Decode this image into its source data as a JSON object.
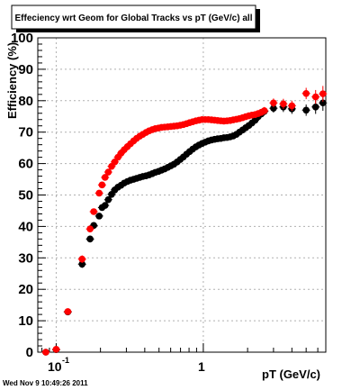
{
  "chart_data": {
    "type": "scatter",
    "title": "Effeciency wrt Geom for Global Tracks vs pT (GeV/c) all",
    "xlabel": "pT (GeV/c)",
    "ylabel": "Efficiency (%)",
    "x_scale": "log",
    "xlim": [
      0.075,
      6.8
    ],
    "ylim": [
      0,
      100
    ],
    "grid": true,
    "x_tick_labels": [
      {
        "base": "10",
        "exp": "-1"
      },
      {
        "base": "1",
        "exp": ""
      }
    ],
    "y_tick_labels": [
      "0",
      "10",
      "20",
      "30",
      "40",
      "50",
      "60",
      "70",
      "80",
      "90",
      "100"
    ],
    "timestamp": "Wed Nov  9 10:49:26 2011",
    "colors": {
      "black_series": "#000000",
      "red_series": "#ff0000"
    },
    "series": [
      {
        "color": "#000000",
        "points": [
          [
            0.085,
            0.0,
            0.5
          ],
          [
            0.1,
            0.8,
            0.5
          ],
          [
            0.12,
            12.8,
            0.7
          ],
          [
            0.15,
            28.0,
            1.2
          ],
          [
            0.17,
            36.0,
            1.1
          ],
          [
            0.18,
            40.3,
            1.0
          ],
          [
            0.196,
            43.3,
            0.9
          ],
          [
            0.205,
            46.0,
            0.8
          ],
          [
            0.215,
            46.7,
            0.7
          ],
          [
            0.226,
            48.5,
            0.6
          ],
          [
            0.238,
            50.2,
            0.5
          ],
          [
            0.25,
            51.6,
            0.5
          ],
          [
            0.263,
            52.5,
            0.5
          ],
          [
            0.276,
            53.1,
            0.5
          ],
          [
            0.29,
            53.8,
            0.5
          ],
          [
            0.305,
            54.3,
            0.5
          ],
          [
            0.32,
            54.7,
            0.5
          ],
          [
            0.336,
            55.0,
            0.5
          ],
          [
            0.352,
            55.3,
            0.5
          ],
          [
            0.37,
            55.6,
            0.5
          ],
          [
            0.388,
            55.9,
            0.5
          ],
          [
            0.408,
            56.1,
            0.5
          ],
          [
            0.428,
            56.4,
            0.5
          ],
          [
            0.45,
            56.8,
            0.5
          ],
          [
            0.472,
            57.2,
            0.5
          ],
          [
            0.496,
            57.5,
            0.5
          ],
          [
            0.52,
            57.9,
            0.5
          ],
          [
            0.546,
            58.3,
            0.5
          ],
          [
            0.574,
            58.8,
            0.5
          ],
          [
            0.602,
            59.3,
            0.5
          ],
          [
            0.632,
            59.8,
            0.5
          ],
          [
            0.664,
            60.5,
            0.5
          ],
          [
            0.697,
            61.3,
            0.5
          ],
          [
            0.732,
            62.1,
            0.5
          ],
          [
            0.769,
            63.0,
            0.5
          ],
          [
            0.807,
            63.8,
            0.5
          ],
          [
            0.847,
            64.6,
            0.5
          ],
          [
            0.89,
            65.3,
            0.5
          ],
          [
            0.934,
            65.9,
            0.5
          ],
          [
            0.981,
            66.4,
            0.5
          ],
          [
            1.03,
            66.8,
            0.5
          ],
          [
            1.082,
            67.2,
            0.5
          ],
          [
            1.136,
            67.5,
            0.5
          ],
          [
            1.193,
            67.7,
            0.5
          ],
          [
            1.252,
            67.9,
            0.5
          ],
          [
            1.315,
            68.0,
            0.5
          ],
          [
            1.38,
            68.2,
            0.5
          ],
          [
            1.449,
            68.3,
            0.5
          ],
          [
            1.522,
            68.5,
            0.6
          ],
          [
            1.598,
            68.8,
            0.6
          ],
          [
            1.678,
            69.3,
            0.6
          ],
          [
            1.762,
            70.0,
            0.7
          ],
          [
            1.85,
            70.7,
            0.7
          ],
          [
            1.942,
            71.4,
            0.8
          ],
          [
            2.04,
            72.1,
            0.8
          ],
          [
            2.14,
            72.9,
            0.9
          ],
          [
            2.25,
            73.8,
            1.0
          ],
          [
            2.36,
            74.9,
            1.0
          ],
          [
            2.48,
            75.8,
            1.1
          ],
          [
            2.6,
            76.6,
            1.2
          ],
          [
            3.0,
            77.6,
            1.4
          ],
          [
            3.5,
            78.0,
            1.6
          ],
          [
            4.0,
            77.4,
            1.6
          ],
          [
            5.0,
            77.0,
            1.8
          ],
          [
            5.8,
            78.0,
            2.2
          ],
          [
            6.5,
            79.3,
            2.5
          ]
        ]
      },
      {
        "color": "#ff0000",
        "points": [
          [
            0.085,
            0.0,
            0.5
          ],
          [
            0.1,
            0.9,
            0.5
          ],
          [
            0.12,
            12.9,
            0.7
          ],
          [
            0.15,
            29.6,
            1.2
          ],
          [
            0.17,
            39.2,
            1.1
          ],
          [
            0.18,
            44.7,
            1.0
          ],
          [
            0.196,
            50.6,
            0.9
          ],
          [
            0.205,
            53.2,
            0.8
          ],
          [
            0.215,
            55.6,
            0.7
          ],
          [
            0.226,
            57.3,
            0.6
          ],
          [
            0.238,
            59.1,
            0.5
          ],
          [
            0.25,
            60.5,
            0.5
          ],
          [
            0.263,
            62.0,
            0.5
          ],
          [
            0.276,
            63.3,
            0.5
          ],
          [
            0.29,
            64.4,
            0.5
          ],
          [
            0.305,
            65.4,
            0.5
          ],
          [
            0.32,
            66.3,
            0.5
          ],
          [
            0.336,
            67.2,
            0.5
          ],
          [
            0.352,
            68.0,
            0.5
          ],
          [
            0.37,
            68.7,
            0.5
          ],
          [
            0.388,
            69.3,
            0.5
          ],
          [
            0.408,
            69.9,
            0.5
          ],
          [
            0.428,
            70.4,
            0.5
          ],
          [
            0.45,
            70.8,
            0.5
          ],
          [
            0.472,
            71.1,
            0.5
          ],
          [
            0.496,
            71.3,
            0.5
          ],
          [
            0.52,
            71.5,
            0.5
          ],
          [
            0.546,
            71.6,
            0.5
          ],
          [
            0.574,
            71.7,
            0.5
          ],
          [
            0.602,
            71.8,
            0.5
          ],
          [
            0.632,
            71.9,
            0.5
          ],
          [
            0.664,
            72.0,
            0.5
          ],
          [
            0.697,
            72.2,
            0.5
          ],
          [
            0.732,
            72.4,
            0.5
          ],
          [
            0.769,
            72.7,
            0.5
          ],
          [
            0.807,
            73.0,
            0.5
          ],
          [
            0.847,
            73.3,
            0.5
          ],
          [
            0.89,
            73.6,
            0.5
          ],
          [
            0.934,
            73.8,
            0.5
          ],
          [
            0.981,
            74.0,
            0.5
          ],
          [
            1.03,
            74.0,
            0.5
          ],
          [
            1.082,
            74.0,
            0.5
          ],
          [
            1.136,
            73.9,
            0.5
          ],
          [
            1.193,
            73.8,
            0.5
          ],
          [
            1.252,
            73.7,
            0.5
          ],
          [
            1.315,
            73.6,
            0.5
          ],
          [
            1.38,
            73.5,
            0.5
          ],
          [
            1.449,
            73.6,
            0.5
          ],
          [
            1.522,
            73.7,
            0.6
          ],
          [
            1.598,
            73.9,
            0.6
          ],
          [
            1.678,
            74.1,
            0.6
          ],
          [
            1.762,
            74.3,
            0.7
          ],
          [
            1.85,
            74.6,
            0.7
          ],
          [
            1.942,
            74.9,
            0.8
          ],
          [
            2.04,
            75.2,
            0.8
          ],
          [
            2.14,
            75.4,
            0.9
          ],
          [
            2.25,
            75.6,
            1.0
          ],
          [
            2.36,
            75.9,
            1.0
          ],
          [
            2.48,
            76.3,
            1.1
          ],
          [
            2.6,
            76.8,
            1.2
          ],
          [
            3.0,
            79.3,
            1.4
          ],
          [
            3.5,
            79.0,
            1.6
          ],
          [
            4.0,
            78.4,
            1.6
          ],
          [
            5.0,
            82.3,
            1.8
          ],
          [
            5.8,
            81.2,
            2.2
          ],
          [
            6.5,
            82.2,
            2.5
          ]
        ]
      }
    ]
  }
}
